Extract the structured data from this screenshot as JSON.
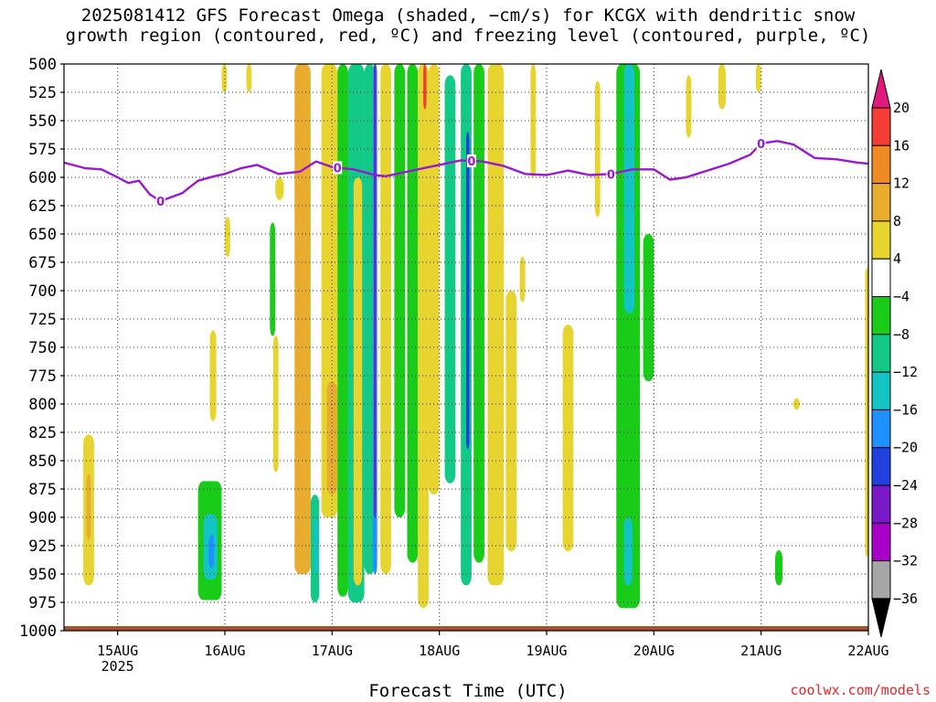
{
  "title_lines": [
    "2025081412 GFS Forecast Omega (shaded, −cm/s) for KCGX with dendritic snow",
    "growth region (contoured, red, ºC) and freezing level (contoured, purple, ºC)"
  ],
  "credit": "coolwx.com/models",
  "chart_data": {
    "type": "heatmap",
    "title": "2025081412 GFS Forecast Omega (shaded, −cm/s) for KCGX with dendritic snow growth region (contoured, red, ºC) and freezing level (contoured, purple, ºC)",
    "xlabel": "Forecast Time (UTC)",
    "ylabel": "",
    "x_ticks": [
      "15AUG",
      "16AUG",
      "17AUG",
      "18AUG",
      "19AUG",
      "20AUG",
      "21AUG",
      "22AUG"
    ],
    "x_tick_sublabel": "2025",
    "x_range": [
      14.5,
      22.0
    ],
    "y_ticks": [
      500,
      525,
      550,
      575,
      600,
      625,
      650,
      675,
      700,
      725,
      750,
      775,
      800,
      825,
      850,
      875,
      900,
      925,
      950,
      975,
      1000
    ],
    "y_range": [
      1000,
      500
    ],
    "grid": true,
    "colorbar": {
      "levels": [
        "20",
        "16",
        "12",
        "8",
        "4",
        "−4",
        "−8",
        "−12",
        "−16",
        "−20",
        "−24",
        "−28",
        "−32",
        "−36"
      ],
      "colors": [
        "#e0197d",
        "#f43d35",
        "#f08a24",
        "#e8ad2e",
        "#e8d42e",
        "#ffffff",
        "#18cc18",
        "#12c988",
        "#12c4c4",
        "#1e90ff",
        "#2040e0",
        "#7a18c8",
        "#a800c8",
        "#a6a6a6",
        "#000000"
      ]
    },
    "freezing_level": {
      "name": "0",
      "color": "#9a18d0",
      "x": [
        14.5,
        14.7,
        14.85,
        15.0,
        15.1,
        15.2,
        15.3,
        15.4,
        15.6,
        15.75,
        15.9,
        16.0,
        16.15,
        16.3,
        16.5,
        16.7,
        16.85,
        17.0,
        17.2,
        17.4,
        17.5,
        17.7,
        17.9,
        18.0,
        18.2,
        18.4,
        18.6,
        18.8,
        19.0,
        19.2,
        19.4,
        19.6,
        19.8,
        20.0,
        20.15,
        20.3,
        20.5,
        20.7,
        20.9,
        21.0,
        21.15,
        21.3,
        21.5,
        21.7,
        21.9,
        22.0
      ],
      "y": [
        587,
        592,
        593,
        600,
        605,
        603,
        615,
        621,
        614,
        603,
        599,
        597,
        592,
        589,
        597,
        595,
        586,
        591,
        593,
        598,
        599,
        595,
        591,
        589,
        585,
        586,
        590,
        597,
        598,
        594,
        598,
        597,
        593,
        593,
        602,
        600,
        594,
        588,
        580,
        570,
        568,
        571,
        583,
        584,
        587,
        588
      ]
    },
    "features": [
      {
        "x": [
          14.68,
          14.78
        ],
        "p": [
          827,
          960
        ],
        "v": 6
      },
      {
        "x": [
          14.71,
          14.75
        ],
        "p": [
          862,
          920
        ],
        "v": 9
      },
      {
        "x": [
          15.75,
          15.97
        ],
        "p": [
          868,
          973
        ],
        "v": -7
      },
      {
        "x": [
          15.8,
          15.93
        ],
        "p": [
          897,
          955
        ],
        "v": -13
      },
      {
        "x": [
          15.85,
          15.9
        ],
        "p": [
          915,
          945
        ],
        "v": -16
      },
      {
        "x": [
          15.86,
          15.92
        ],
        "p": [
          735,
          815
        ],
        "v": 6
      },
      {
        "x": [
          15.97,
          16.02
        ],
        "p": [
          500,
          525
        ],
        "v": 5
      },
      {
        "x": [
          16.0,
          16.05
        ],
        "p": [
          635,
          670
        ],
        "v": 5
      },
      {
        "x": [
          16.2,
          16.25
        ],
        "p": [
          500,
          525
        ],
        "v": 5
      },
      {
        "x": [
          16.42,
          16.47
        ],
        "p": [
          640,
          740
        ],
        "v": -7
      },
      {
        "x": [
          16.45,
          16.5
        ],
        "p": [
          740,
          860
        ],
        "v": 5
      },
      {
        "x": [
          16.47,
          16.55
        ],
        "p": [
          600,
          620
        ],
        "v": 5
      },
      {
        "x": [
          16.65,
          16.8
        ],
        "p": [
          500,
          950
        ],
        "v": 8
      },
      {
        "x": [
          16.72,
          16.77
        ],
        "p": [
          660,
          820
        ],
        "v": 11
      },
      {
        "x": [
          16.8,
          16.88
        ],
        "p": [
          880,
          975
        ],
        "v": -9
      },
      {
        "x": [
          16.83,
          16.87
        ],
        "p": [
          900,
          950
        ],
        "v": -14
      },
      {
        "x": [
          16.9,
          17.05
        ],
        "p": [
          500,
          900
        ],
        "v": 5
      },
      {
        "x": [
          16.95,
          17.05
        ],
        "p": [
          780,
          880
        ],
        "v": 10
      },
      {
        "x": [
          17.05,
          17.15
        ],
        "p": [
          500,
          970
        ],
        "v": -6
      },
      {
        "x": [
          17.15,
          17.3
        ],
        "p": [
          500,
          975
        ],
        "v": -9
      },
      {
        "x": [
          17.2,
          17.28
        ],
        "p": [
          600,
          960
        ],
        "v": 5
      },
      {
        "x": [
          17.3,
          17.4
        ],
        "p": [
          500,
          950
        ],
        "v": -11
      },
      {
        "x": [
          17.38,
          17.42
        ],
        "p": [
          500,
          950
        ],
        "v": -16
      },
      {
        "x": [
          17.39,
          17.41
        ],
        "p": [
          500,
          900
        ],
        "v": -24
      },
      {
        "x": [
          17.45,
          17.55
        ],
        "p": [
          500,
          950
        ],
        "v": 5
      },
      {
        "x": [
          17.58,
          17.68
        ],
        "p": [
          500,
          900
        ],
        "v": -6
      },
      {
        "x": [
          17.7,
          17.8
        ],
        "p": [
          500,
          940
        ],
        "v": -7
      },
      {
        "x": [
          17.8,
          17.9
        ],
        "p": [
          500,
          980
        ],
        "v": 6
      },
      {
        "x": [
          17.85,
          17.88
        ],
        "p": [
          500,
          540
        ],
        "v": 17
      },
      {
        "x": [
          17.9,
          18.0
        ],
        "p": [
          500,
          880
        ],
        "v": 5
      },
      {
        "x": [
          18.05,
          18.15
        ],
        "p": [
          510,
          870
        ],
        "v": -8
      },
      {
        "x": [
          18.2,
          18.3
        ],
        "p": [
          500,
          960
        ],
        "v": -10
      },
      {
        "x": [
          18.25,
          18.28
        ],
        "p": [
          560,
          840
        ],
        "v": -20
      },
      {
        "x": [
          18.32,
          18.42
        ],
        "p": [
          500,
          940
        ],
        "v": -7
      },
      {
        "x": [
          18.45,
          18.6
        ],
        "p": [
          500,
          960
        ],
        "v": 5
      },
      {
        "x": [
          18.62,
          18.72
        ],
        "p": [
          700,
          930
        ],
        "v": 5
      },
      {
        "x": [
          18.75,
          18.8
        ],
        "p": [
          670,
          710
        ],
        "v": 5
      },
      {
        "x": [
          18.85,
          18.9
        ],
        "p": [
          500,
          600
        ],
        "v": 5
      },
      {
        "x": [
          19.15,
          19.25
        ],
        "p": [
          730,
          930
        ],
        "v": 5
      },
      {
        "x": [
          19.45,
          19.5
        ],
        "p": [
          515,
          635
        ],
        "v": 5
      },
      {
        "x": [
          19.65,
          19.87
        ],
        "p": [
          500,
          980
        ],
        "v": -7
      },
      {
        "x": [
          19.72,
          19.82
        ],
        "p": [
          500,
          720
        ],
        "v": -13
      },
      {
        "x": [
          19.72,
          19.8
        ],
        "p": [
          900,
          960
        ],
        "v": -13
      },
      {
        "x": [
          19.9,
          20.0
        ],
        "p": [
          650,
          780
        ],
        "v": -7
      },
      {
        "x": [
          20.3,
          20.35
        ],
        "p": [
          510,
          565
        ],
        "v": 5
      },
      {
        "x": [
          20.6,
          20.67
        ],
        "p": [
          500,
          540
        ],
        "v": 5
      },
      {
        "x": [
          20.95,
          21.0
        ],
        "p": [
          500,
          525
        ],
        "v": 5
      },
      {
        "x": [
          21.13,
          21.2
        ],
        "p": [
          929,
          960
        ],
        "v": -7
      },
      {
        "x": [
          21.3,
          21.36
        ],
        "p": [
          795,
          805
        ],
        "v": 5
      },
      {
        "x": [
          21.97,
          22.0
        ],
        "p": [
          680,
          935
        ],
        "v": 5
      }
    ]
  }
}
